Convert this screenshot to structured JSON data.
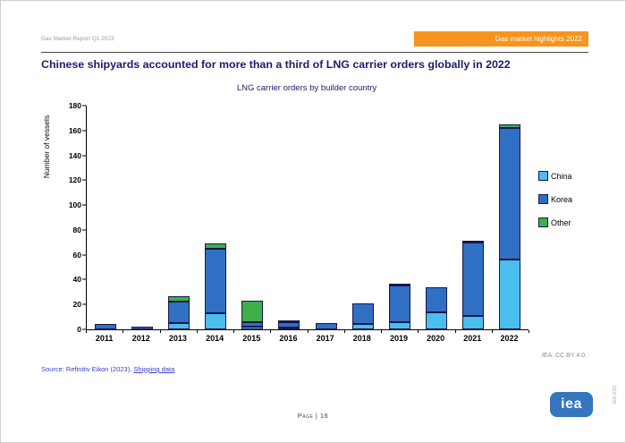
{
  "header": {
    "report_label": "Gas Market Report Q1 2023",
    "badge": "Gas market highlights 2022"
  },
  "title": "Chinese shipyards accounted for more than a third of LNG carrier orders globally in 2022",
  "chart_data": {
    "type": "bar",
    "stacked": true,
    "title": "LNG carrier orders by builder country",
    "xlabel": "",
    "ylabel": "Number of vessels",
    "ylim": [
      0,
      180
    ],
    "ytick_step": 20,
    "grid": false,
    "legend_position": "right",
    "categories": [
      "2011",
      "2012",
      "2013",
      "2014",
      "2015",
      "2016",
      "2017",
      "2018",
      "2019",
      "2020",
      "2021",
      "2022"
    ],
    "series": [
      {
        "name": "China",
        "color": "#4ABEEC",
        "values": [
          0,
          0,
          5,
          13,
          2,
          1,
          0,
          4,
          6,
          14,
          11,
          56
        ]
      },
      {
        "name": "Korea",
        "color": "#2F6FC4",
        "values": [
          4,
          2,
          17,
          52,
          4,
          4,
          5,
          17,
          29,
          20,
          59,
          106
        ]
      },
      {
        "name": "Other",
        "color": "#3EAF4A",
        "values": [
          0,
          0,
          5,
          4,
          17,
          1,
          0,
          0,
          2,
          0,
          1,
          3
        ]
      }
    ]
  },
  "footer": {
    "source_prefix": "Source: Refinitiv Eikon (2023), ",
    "source_link": "Shipping data",
    "license": "IEA. CC BY 4.0.",
    "page": "Page | 16",
    "logo": "iea",
    "side_note": "IEA 2023"
  },
  "theme": {
    "accent_orange": "#F7941D",
    "title_navy": "#1B1B6F",
    "logo_blue": "#3575BE",
    "bar_border": "#17174A",
    "source_blue": "#3B3BCC"
  }
}
